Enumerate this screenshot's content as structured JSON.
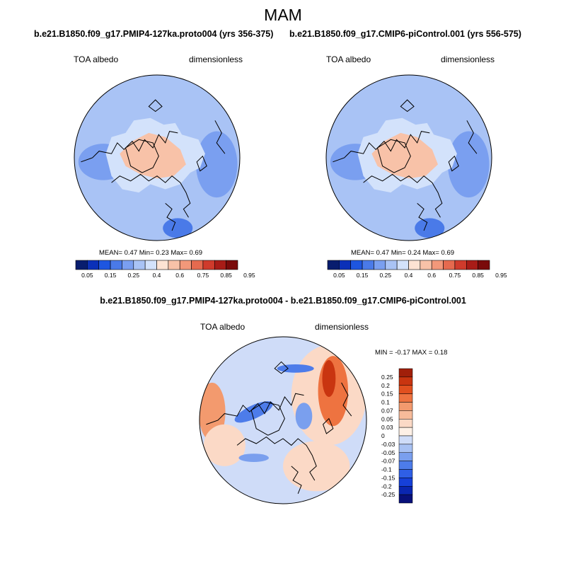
{
  "figure": {
    "title": "MAM",
    "colors": {
      "seq_palette": [
        "#081d6e",
        "#0b30b8",
        "#1e56e0",
        "#4a7ae8",
        "#7a9ff0",
        "#a9c3f5",
        "#d3e2fb",
        "#fde3d3",
        "#f8c2a8",
        "#f2987a",
        "#e56a4f",
        "#cf3b2c",
        "#a81c17",
        "#7a0b0b"
      ],
      "diff_palette": [
        "#08107a",
        "#0a26b0",
        "#1640d8",
        "#2f5fe6",
        "#4d7cea",
        "#7a9fee",
        "#a8c1f3",
        "#cfdcf8",
        "#fdf0e6",
        "#fbd9c6",
        "#f7bb9a",
        "#f39a6e",
        "#ee7340",
        "#e1501f",
        "#c93510",
        "#a11f0a"
      ],
      "coast": "#000000"
    },
    "panels": [
      {
        "title": "b.e21.B1850.f09_g17.PMIP4-127ka.proto004 (yrs 356-375)",
        "left_label": "TOA albedo",
        "right_label": "dimensionless",
        "stats": "MEAN=   0.47   Min=    0.23   Max=    0.69"
      },
      {
        "title": "b.e21.B1850.f09_g17.CMIP6-piControl.001 (yrs 556-575)",
        "left_label": "TOA albedo",
        "right_label": "dimensionless",
        "stats": "MEAN=   0.47   Min=    0.24   Max=    0.69"
      },
      {
        "title": "b.e21.B1850.f09_g17.PMIP4-127ka.proto004 - b.e21.B1850.f09_g17.CMIP6-piControl.001",
        "left_label": "TOA albedo",
        "right_label": "dimensionless",
        "stats": "MIN =  -0.17 MAX =    0.18"
      }
    ]
  },
  "chart_data": [
    {
      "type": "heatmap",
      "projection": "north polar stereographic",
      "title": "b.e21.B1850.f09_g17.PMIP4-127ka.proto004 (yrs 356-375)",
      "variable": "TOA albedo",
      "units": "dimensionless",
      "mean": 0.47,
      "min": 0.23,
      "max": 0.69,
      "colorbar_levels": [
        0.05,
        0.1,
        0.15,
        0.2,
        0.25,
        0.3,
        0.4,
        0.5,
        0.6,
        0.7,
        0.75,
        0.8,
        0.85,
        0.9,
        0.95
      ],
      "colorbar_labels": [
        "0.05",
        "0.15",
        "0.25",
        "0.4",
        "0.6",
        "0.75",
        "0.85",
        "0.95"
      ]
    },
    {
      "type": "heatmap",
      "projection": "north polar stereographic",
      "title": "b.e21.B1850.f09_g17.CMIP6-piControl.001 (yrs 556-575)",
      "variable": "TOA albedo",
      "units": "dimensionless",
      "mean": 0.47,
      "min": 0.24,
      "max": 0.69,
      "colorbar_levels": [
        0.05,
        0.1,
        0.15,
        0.2,
        0.25,
        0.3,
        0.4,
        0.5,
        0.6,
        0.7,
        0.75,
        0.8,
        0.85,
        0.9,
        0.95
      ],
      "colorbar_labels": [
        "0.05",
        "0.15",
        "0.25",
        "0.4",
        "0.6",
        "0.75",
        "0.85",
        "0.95"
      ]
    },
    {
      "type": "heatmap",
      "projection": "north polar stereographic",
      "title": "b.e21.B1850.f09_g17.PMIP4-127ka.proto004 - b.e21.B1850.f09_g17.CMIP6-piControl.001",
      "variable": "TOA albedo",
      "units": "dimensionless",
      "min": -0.17,
      "max": 0.18,
      "colorbar_labels": [
        "0.25",
        "0.2",
        "0.15",
        "0.1",
        "0.07",
        "0.05",
        "0.03",
        "0",
        "-0.03",
        "-0.05",
        "-0.07",
        "-0.1",
        "-0.15",
        "-0.2",
        "-0.25"
      ]
    }
  ]
}
